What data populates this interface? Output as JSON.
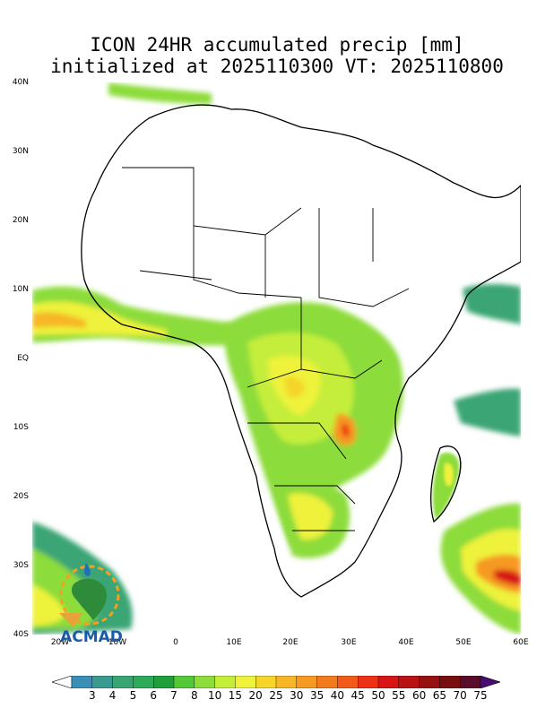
{
  "title_line1": "ICON 24HR accumulated precip [mm]",
  "title_line2": "initialized at 2025110300 VT: 2025110800",
  "lat_labels": [
    "40N",
    "30N",
    "20N",
    "10N",
    "EQ",
    "10S",
    "20S",
    "30S",
    "40S"
  ],
  "lon_labels": [
    "20W",
    "10W",
    "0",
    "10E",
    "20E",
    "30E",
    "40E",
    "50E",
    "60E"
  ],
  "logo_text": "ACMAD",
  "colorbar": {
    "levels": [
      "3",
      "4",
      "5",
      "6",
      "7",
      "8",
      "10",
      "15",
      "20",
      "25",
      "30",
      "35",
      "40",
      "45",
      "50",
      "55",
      "60",
      "65",
      "70",
      "75"
    ],
    "colors": [
      "#3a8fb7",
      "#3a9a8f",
      "#3aa574",
      "#2eab5a",
      "#1f9e3a",
      "#55c838",
      "#8cdc3a",
      "#c4ee3a",
      "#eef23a",
      "#f5d52a",
      "#f7b625",
      "#f59922",
      "#f47a1e",
      "#f25a1a",
      "#ee3017",
      "#d81515",
      "#b81212",
      "#981010",
      "#780e0e",
      "#5a0d2a",
      "#4a0a70"
    ]
  },
  "colors": {
    "land_line": "#000000",
    "background": "#ffffff"
  }
}
